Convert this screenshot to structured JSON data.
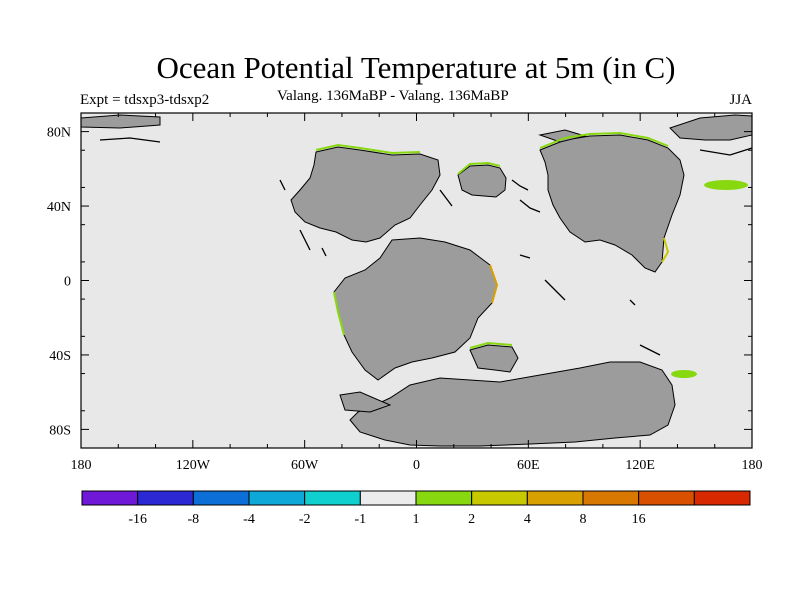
{
  "title": "Ocean Potential Temperature at 5m (in C)",
  "left_label": "Expt = tdsxp3-tdsxp2",
  "center_label": "Valang. 136MaBP - Valang. 136MaBP",
  "right_label": "JJA",
  "map": {
    "ocean_color": "#e8e8e8",
    "land_color": "#9c9c9c",
    "lon_ticks": [
      {
        "value": -180,
        "label": "180"
      },
      {
        "value": -120,
        "label": "120W"
      },
      {
        "value": -60,
        "label": "60W"
      },
      {
        "value": 0,
        "label": "0"
      },
      {
        "value": 60,
        "label": "60E"
      },
      {
        "value": 120,
        "label": "120E"
      },
      {
        "value": 180,
        "label": "180"
      }
    ],
    "lat_ticks": [
      {
        "value": 80,
        "label": "80N"
      },
      {
        "value": 40,
        "label": "40N"
      },
      {
        "value": 0,
        "label": "0"
      },
      {
        "value": -40,
        "label": "40S"
      },
      {
        "value": -80,
        "label": "80S"
      }
    ]
  },
  "colorbar": {
    "colors": [
      "#6f18d8",
      "#2b28d4",
      "#0c6fd8",
      "#0ea8d8",
      "#10cfcf",
      "#ececec",
      "#88d810",
      "#c8c800",
      "#d8a000",
      "#d87800",
      "#d85000",
      "#d82800"
    ],
    "labels": [
      "-16",
      "-8",
      "-4",
      "-2",
      "-1",
      "1",
      "2",
      "4",
      "8",
      "16"
    ]
  }
}
